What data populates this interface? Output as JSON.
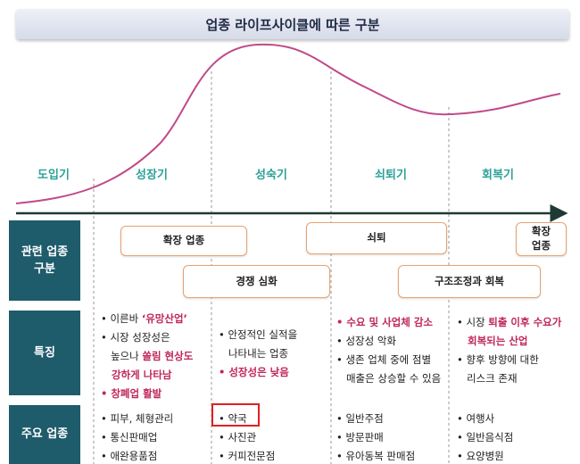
{
  "title": "업종 라이프사이클에 따른 구분",
  "stages": [
    "도입기",
    "성장기",
    "성숙기",
    "쇠퇴기",
    "회복기"
  ],
  "rows": {
    "related": "관련 업종\n구분",
    "features": "특징",
    "main": "주요 업종"
  },
  "boxes": {
    "expansion": "확장 업종",
    "competition": "경쟁 심화",
    "decline": "쇠퇴",
    "restructure": "구조조정과 회복",
    "expansion2": "확장\n업종"
  },
  "features": {
    "growth": [
      {
        "parts": [
          {
            "t": "• 이른바 ",
            "h": false
          },
          {
            "t": "‘유망산업’",
            "h": true
          }
        ]
      },
      {
        "parts": [
          {
            "t": "• 시장 성장성은",
            "h": false
          }
        ]
      },
      {
        "parts": [
          {
            "t": "   높으나 ",
            "h": false
          },
          {
            "t": "쏠림 현상도",
            "h": true
          }
        ]
      },
      {
        "parts": [
          {
            "t": "   강하게 나타남",
            "h": true
          }
        ]
      },
      {
        "parts": [
          {
            "t": "• 창폐업 활발",
            "h": true
          }
        ]
      }
    ],
    "mature": [
      {
        "parts": [
          {
            "t": "• 안정적인 실적을",
            "h": false
          }
        ]
      },
      {
        "parts": [
          {
            "t": "   나타내는 업종",
            "h": false
          }
        ]
      },
      {
        "parts": [
          {
            "t": "• 성장성은 낮음",
            "h": true
          }
        ]
      }
    ],
    "decline": [
      {
        "parts": [
          {
            "t": "• 수요 및 사업체 감소",
            "h": true
          }
        ]
      },
      {
        "parts": [
          {
            "t": "• 성장성 악화",
            "h": false
          }
        ]
      },
      {
        "parts": [
          {
            "t": "• 생존 업체 중에 점별",
            "h": false
          }
        ]
      },
      {
        "parts": [
          {
            "t": "   매출은 상승할 수 있음",
            "h": false
          }
        ]
      }
    ],
    "recovery": [
      {
        "parts": [
          {
            "t": "• 시장 ",
            "h": false
          },
          {
            "t": "퇴출 이후 수요가",
            "h": true
          }
        ]
      },
      {
        "parts": [
          {
            "t": "   회복되는 산업",
            "h": true
          }
        ]
      },
      {
        "parts": [
          {
            "t": "• 향후 방향에 대한",
            "h": false
          }
        ]
      },
      {
        "parts": [
          {
            "t": "   리스크 존재",
            "h": false
          }
        ]
      }
    ]
  },
  "main": {
    "growth": [
      "• 피부, 체형관리",
      "• 통신판매업",
      "• 애완용품점"
    ],
    "mature": [
      "• 약국",
      "• 사진관",
      "• 커피전문점"
    ],
    "decline": [
      "• 일반주점",
      "• 방문판매",
      "• 유아동복 판매점"
    ],
    "recovery": [
      "• 여행사",
      "• 일반음식점",
      "• 요양병원"
    ]
  },
  "colors": {
    "header_bg": "#1e5b6b",
    "stage_text": "#2aa198",
    "highlight": "#c0275a",
    "box_border": "#e8a372",
    "curve": "#c04a8a"
  }
}
